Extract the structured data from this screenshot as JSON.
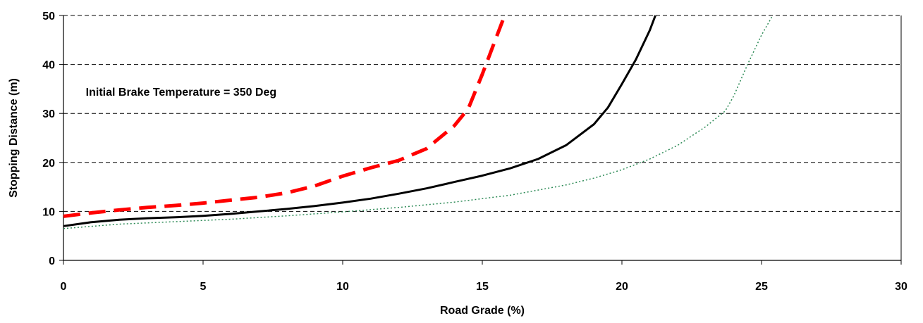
{
  "chart_data": {
    "type": "line",
    "title": "",
    "xlabel": "Road Grade (%)",
    "ylabel": "Stopping Distance (m)",
    "xlim": [
      0,
      30
    ],
    "ylim": [
      0,
      50
    ],
    "xticks": [
      0,
      5,
      10,
      15,
      20,
      25,
      30
    ],
    "yticks": [
      0,
      10,
      20,
      30,
      40,
      50
    ],
    "grid": "horizontal-dashed",
    "legend": "none",
    "annotations": [
      {
        "text": "Initial Brake Temperature = 350 Deg",
        "x": 0.8,
        "y": 34.5
      }
    ],
    "series": [
      {
        "color": "#ff0000",
        "style": "dashed",
        "points": [
          [
            0,
            9
          ],
          [
            1,
            9.7
          ],
          [
            2,
            10.3
          ],
          [
            3,
            10.8
          ],
          [
            4,
            11.2
          ],
          [
            5,
            11.7
          ],
          [
            6,
            12.3
          ],
          [
            7,
            12.9
          ],
          [
            8,
            13.8
          ],
          [
            9,
            15.2
          ],
          [
            10,
            17.2
          ],
          [
            11,
            18.9
          ],
          [
            12,
            20.4
          ],
          [
            13,
            22.8
          ],
          [
            14,
            27.5
          ],
          [
            14.5,
            31
          ],
          [
            15,
            38
          ],
          [
            15.4,
            44
          ],
          [
            15.8,
            50
          ]
        ]
      },
      {
        "color": "#000000",
        "style": "solid",
        "points": [
          [
            0,
            7
          ],
          [
            1,
            7.8
          ],
          [
            2,
            8.3
          ],
          [
            3,
            8.6
          ],
          [
            4,
            8.8
          ],
          [
            5,
            9.1
          ],
          [
            6,
            9.5
          ],
          [
            7,
            10
          ],
          [
            8,
            10.5
          ],
          [
            9,
            11.1
          ],
          [
            10,
            11.8
          ],
          [
            11,
            12.6
          ],
          [
            12,
            13.6
          ],
          [
            13,
            14.7
          ],
          [
            14,
            16
          ],
          [
            15,
            17.3
          ],
          [
            16,
            18.8
          ],
          [
            17,
            20.7
          ],
          [
            18,
            23.5
          ],
          [
            19,
            27.8
          ],
          [
            19.5,
            31.2
          ],
          [
            20,
            36
          ],
          [
            20.5,
            41
          ],
          [
            21,
            47
          ],
          [
            21.2,
            50
          ]
        ]
      },
      {
        "color": "#2e8b57",
        "style": "dotted",
        "points": [
          [
            0,
            6.5
          ],
          [
            2,
            7.4
          ],
          [
            4,
            7.9
          ],
          [
            6,
            8.4
          ],
          [
            8,
            9.1
          ],
          [
            10,
            9.9
          ],
          [
            12,
            10.8
          ],
          [
            14,
            11.9
          ],
          [
            16,
            13.3
          ],
          [
            18,
            15.4
          ],
          [
            19,
            16.8
          ],
          [
            20,
            18.5
          ],
          [
            21,
            20.7
          ],
          [
            22,
            23.5
          ],
          [
            23,
            27.3
          ],
          [
            23.7,
            30.5
          ],
          [
            24,
            33.5
          ],
          [
            24.5,
            40
          ],
          [
            25,
            46
          ],
          [
            25.4,
            50
          ]
        ]
      }
    ]
  }
}
